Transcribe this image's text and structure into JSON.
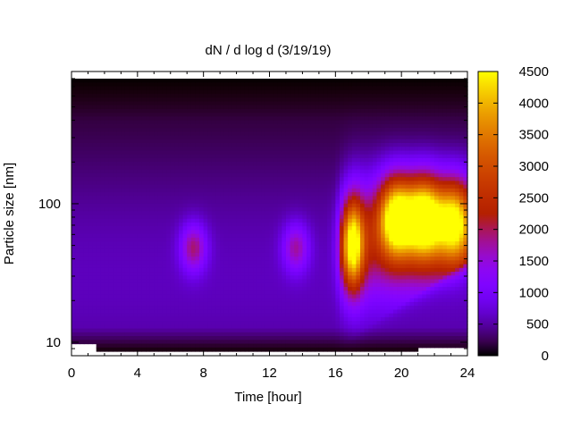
{
  "chart_data": {
    "type": "heatmap",
    "title": "dN / d log d (3/19/19)",
    "xlabel": "Time [hour]",
    "ylabel": "Particle size [nm]",
    "xlim": [
      0,
      24
    ],
    "ylim": [
      8,
      900
    ],
    "y_scale": "log",
    "x_ticks": [
      0,
      4,
      8,
      12,
      16,
      20,
      24
    ],
    "y_ticks": [
      10,
      100
    ],
    "colorbar": {
      "ticks": [
        0,
        500,
        1000,
        1500,
        2000,
        2500,
        3000,
        3500,
        4000,
        4500
      ],
      "range": [
        0,
        4500
      ],
      "palette": "gnuplot-pm3d",
      "colors": [
        "#000000",
        "#7f00ff",
        "#c0007f",
        "#ff5500",
        "#ffff00"
      ]
    },
    "grid": false,
    "features": [
      {
        "description_role": "background",
        "value": 600
      },
      {
        "time": 7.4,
        "size": 48,
        "value": 1650
      },
      {
        "time": 13.6,
        "size": 48,
        "value": 1500
      },
      {
        "time": 17.0,
        "size": 50,
        "value": 3550
      },
      {
        "time": 19.7,
        "size": 80,
        "value": 3900
      },
      {
        "time": 21.4,
        "size": 80,
        "value": 3950
      },
      {
        "time": 23.2,
        "size": 75,
        "value": 3300
      }
    ]
  }
}
